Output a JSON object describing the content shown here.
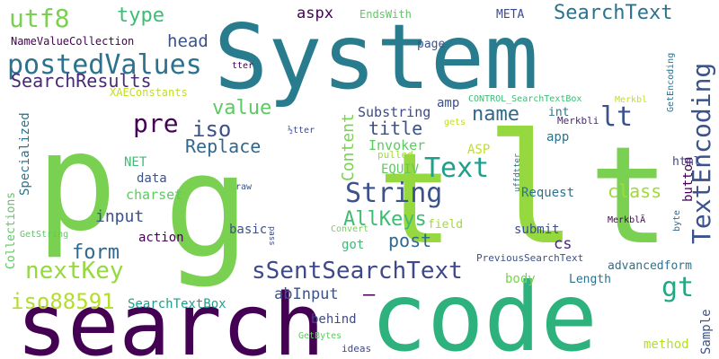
{
  "words": [
    {
      "text": "System",
      "color": "#287c8e"
    },
    {
      "text": "p",
      "color": "#7ad151"
    },
    {
      "text": "g",
      "color": "#7ad151"
    },
    {
      "text": "t",
      "color": "#95d840"
    },
    {
      "text": "l",
      "color": "#95d840"
    },
    {
      "text": "t",
      "color": "#7ad151"
    },
    {
      "text": "code",
      "color": "#2db27d"
    },
    {
      "text": "search",
      "color": "#440154"
    },
    {
      "text": "postedValues",
      "color": "#2c728e"
    },
    {
      "text": "utf8",
      "color": "#7ad151"
    },
    {
      "text": "type",
      "color": "#3dbc74"
    },
    {
      "text": "aspx",
      "color": "#440154"
    },
    {
      "text": "SearchText",
      "color": "#2c728e"
    },
    {
      "text": "TextEncoding",
      "color": "#3b528b"
    },
    {
      "text": "SearchResults",
      "color": "#482878"
    },
    {
      "text": "head",
      "color": "#3b528b"
    },
    {
      "text": "NameValueCollection",
      "color": "#440154"
    },
    {
      "text": "EndsWith",
      "color": "#5ec962"
    },
    {
      "text": "META",
      "color": "#3e4989"
    },
    {
      "text": "pre",
      "color": "#440154"
    },
    {
      "text": "iso",
      "color": "#3b528b"
    },
    {
      "text": "value",
      "color": "#5ec962"
    },
    {
      "text": "name",
      "color": "#31688e"
    },
    {
      "text": "lt",
      "color": "#3b528b"
    },
    {
      "text": "Replace",
      "color": "#31688e"
    },
    {
      "text": "String",
      "color": "#3b528b"
    },
    {
      "text": "Text",
      "color": "#1f9e89"
    },
    {
      "text": "title",
      "color": "#3b528b"
    },
    {
      "text": "class",
      "color": "#a0da39"
    },
    {
      "text": "AllKeys",
      "color": "#3dbc74"
    },
    {
      "text": "input",
      "color": "#3b528b"
    },
    {
      "text": "form",
      "color": "#31688e"
    },
    {
      "text": "nextKey",
      "color": "#95d840"
    },
    {
      "text": "sSentSearchText",
      "color": "#3e4989"
    },
    {
      "text": "iso88591",
      "color": "#b5de2b"
    },
    {
      "text": "post",
      "color": "#31688e"
    },
    {
      "text": "gt",
      "color": "#22a884"
    },
    {
      "text": "Content",
      "color": "#7ad151"
    },
    {
      "text": "Specialized",
      "color": "#2c728e"
    },
    {
      "text": "Collections",
      "color": "#5ec962"
    },
    {
      "text": "abInput",
      "color": "#3b528b"
    },
    {
      "text": "SearchTextBox",
      "color": "#1f9e89"
    },
    {
      "text": "XAEConstants",
      "color": "#c0df25"
    },
    {
      "text": "Substring",
      "color": "#3e4989"
    },
    {
      "text": "Invoker",
      "color": "#5ec962"
    },
    {
      "text": "EQUIV",
      "color": "#5ec962"
    },
    {
      "text": "ASP",
      "color": "#c2df23"
    },
    {
      "text": "NET",
      "color": "#3dbc74"
    },
    {
      "text": "data",
      "color": "#3b528b"
    },
    {
      "text": "charset",
      "color": "#5ec962"
    },
    {
      "text": "action",
      "color": "#440154"
    },
    {
      "text": "basic",
      "color": "#3b528b"
    },
    {
      "text": "field",
      "color": "#a0da39"
    },
    {
      "text": "got",
      "color": "#3dbc74"
    },
    {
      "text": "submit",
      "color": "#3b528b"
    },
    {
      "text": "cs",
      "color": "#482878"
    },
    {
      "text": "Request",
      "color": "#2c728e"
    },
    {
      "text": "app",
      "color": "#2c728e"
    },
    {
      "text": "button",
      "color": "#440154"
    },
    {
      "text": "html",
      "color": "#3e4989"
    },
    {
      "text": "page",
      "color": "#3b528b"
    },
    {
      "text": "amp",
      "color": "#3b528b"
    },
    {
      "text": "int",
      "color": "#2c728e"
    },
    {
      "text": "Length",
      "color": "#2c728e"
    },
    {
      "text": "advancedform",
      "color": "#2c728e"
    },
    {
      "text": "body",
      "color": "#7ad151"
    },
    {
      "text": "behind",
      "color": "#3e4989"
    },
    {
      "text": "Sample",
      "color": "#3b528b"
    },
    {
      "text": "method",
      "color": "#b5de2b"
    },
    {
      "text": "ideas",
      "color": "#3e4989"
    },
    {
      "text": "GetBytes",
      "color": "#5ec962"
    },
    {
      "text": "PreviousSearchText",
      "color": "#3b528b"
    },
    {
      "text": "CONTROL_SearchTextBox",
      "color": "#3dbc74"
    },
    {
      "text": "Merkbl",
      "color": "#c2df23"
    },
    {
      "text": "Merkbli",
      "color": "#482878"
    },
    {
      "text": "MerkblÃ",
      "color": "#440154"
    },
    {
      "text": "GetEncoding",
      "color": "#2c728e"
    },
    {
      "text": "uffdtter",
      "color": "#2c728e"
    },
    {
      "text": "tter",
      "color": "#440154"
    },
    {
      "text": "½tter",
      "color": "#3e4989"
    },
    {
      "text": "pulled",
      "color": "#a0da39"
    },
    {
      "text": "gets",
      "color": "#c2df23"
    },
    {
      "text": "raw",
      "color": "#3b528b"
    },
    {
      "text": "byte",
      "color": "#31688e"
    },
    {
      "text": "GetString",
      "color": "#5ec962"
    },
    {
      "text": "Convert",
      "color": "#7ad151"
    },
    {
      "text": "pass",
      "color": "#3e4989"
    },
    {
      "text": "—",
      "color": "#440154"
    }
  ]
}
